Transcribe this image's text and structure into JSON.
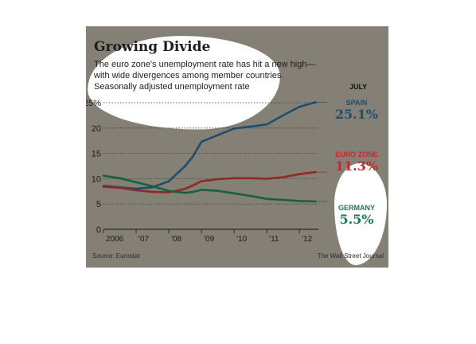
{
  "header": {
    "title": "Growing Divide",
    "subtitle_lines": [
      "The euro zone's unemployment rate has hit a new high—",
      "with wide divergences among member countries.",
      "Seasonally adjusted unemployment rate"
    ]
  },
  "legend": {
    "date": "JULY",
    "items": [
      {
        "name": "SPAIN",
        "value": "25.1%",
        "color": "#1c4f6e"
      },
      {
        "name": "EURO ZONE",
        "value": "11.3%",
        "color": "#c8282a"
      },
      {
        "name": "GERMANY",
        "value": "5.5%",
        "color": "#1b7a56"
      }
    ]
  },
  "footer": {
    "source": "Source: Eurostat",
    "credit": "The Wall Street Journal"
  },
  "colors": {
    "spain": "#1c4f6e",
    "euro_zone": "#8e2a26",
    "germany": "#1b5f3c",
    "background": "#858076"
  },
  "chart_data": {
    "type": "line",
    "title": "Growing Divide",
    "xlabel": "",
    "ylabel": "",
    "ylim": [
      0,
      25
    ],
    "yticks": [
      0,
      5,
      10,
      15,
      20,
      25
    ],
    "ytick_labels": [
      "0",
      "5",
      "10",
      "15",
      "20",
      "25%"
    ],
    "xlim": [
      2006.0,
      2012.58
    ],
    "xticks": [
      2006,
      2007,
      2008,
      2009,
      2010,
      2011,
      2012
    ],
    "xtick_labels": [
      "2006",
      "'07",
      "'08",
      "'09",
      "'10",
      "'11",
      "'12"
    ],
    "grid": "horizontal dotted",
    "x": [
      2006.0,
      2006.5,
      2007.0,
      2007.5,
      2008.0,
      2008.5,
      2008.75,
      2009.0,
      2009.5,
      2010.0,
      2010.5,
      2011.0,
      2011.5,
      2012.0,
      2012.5
    ],
    "series": [
      {
        "name": "SPAIN",
        "values": [
          8.6,
          8.3,
          8.0,
          8.3,
          9.5,
          12.5,
          14.5,
          17.3,
          18.6,
          19.9,
          20.3,
          20.7,
          22.5,
          24.2,
          25.1
        ]
      },
      {
        "name": "EURO ZONE",
        "values": [
          8.4,
          8.2,
          7.7,
          7.4,
          7.3,
          8.0,
          8.7,
          9.5,
          9.9,
          10.1,
          10.1,
          10.0,
          10.3,
          10.9,
          11.3
        ]
      },
      {
        "name": "GERMANY",
        "values": [
          10.6,
          10.1,
          9.3,
          8.5,
          7.6,
          7.2,
          7.4,
          7.8,
          7.6,
          7.1,
          6.6,
          6.0,
          5.8,
          5.6,
          5.5
        ]
      }
    ]
  }
}
